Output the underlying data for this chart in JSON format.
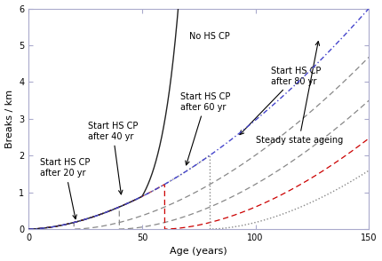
{
  "xlabel": "Age (years)",
  "ylabel": "Breaks / km",
  "xlim": [
    0,
    150
  ],
  "ylim": [
    0,
    6
  ],
  "xticks": [
    0,
    50,
    100,
    150
  ],
  "yticks": [
    0,
    1,
    2,
    3,
    4,
    5,
    6
  ],
  "ss_color": "#4444cc",
  "no_hscp_color": "#222222",
  "hscp20_color": "#888888",
  "hscp40_color": "#888888",
  "hscp60_color": "#cc0000",
  "hscp80_color": "#888888",
  "annot_fontsize": 7,
  "axis_fontsize": 8,
  "tick_fontsize": 7
}
